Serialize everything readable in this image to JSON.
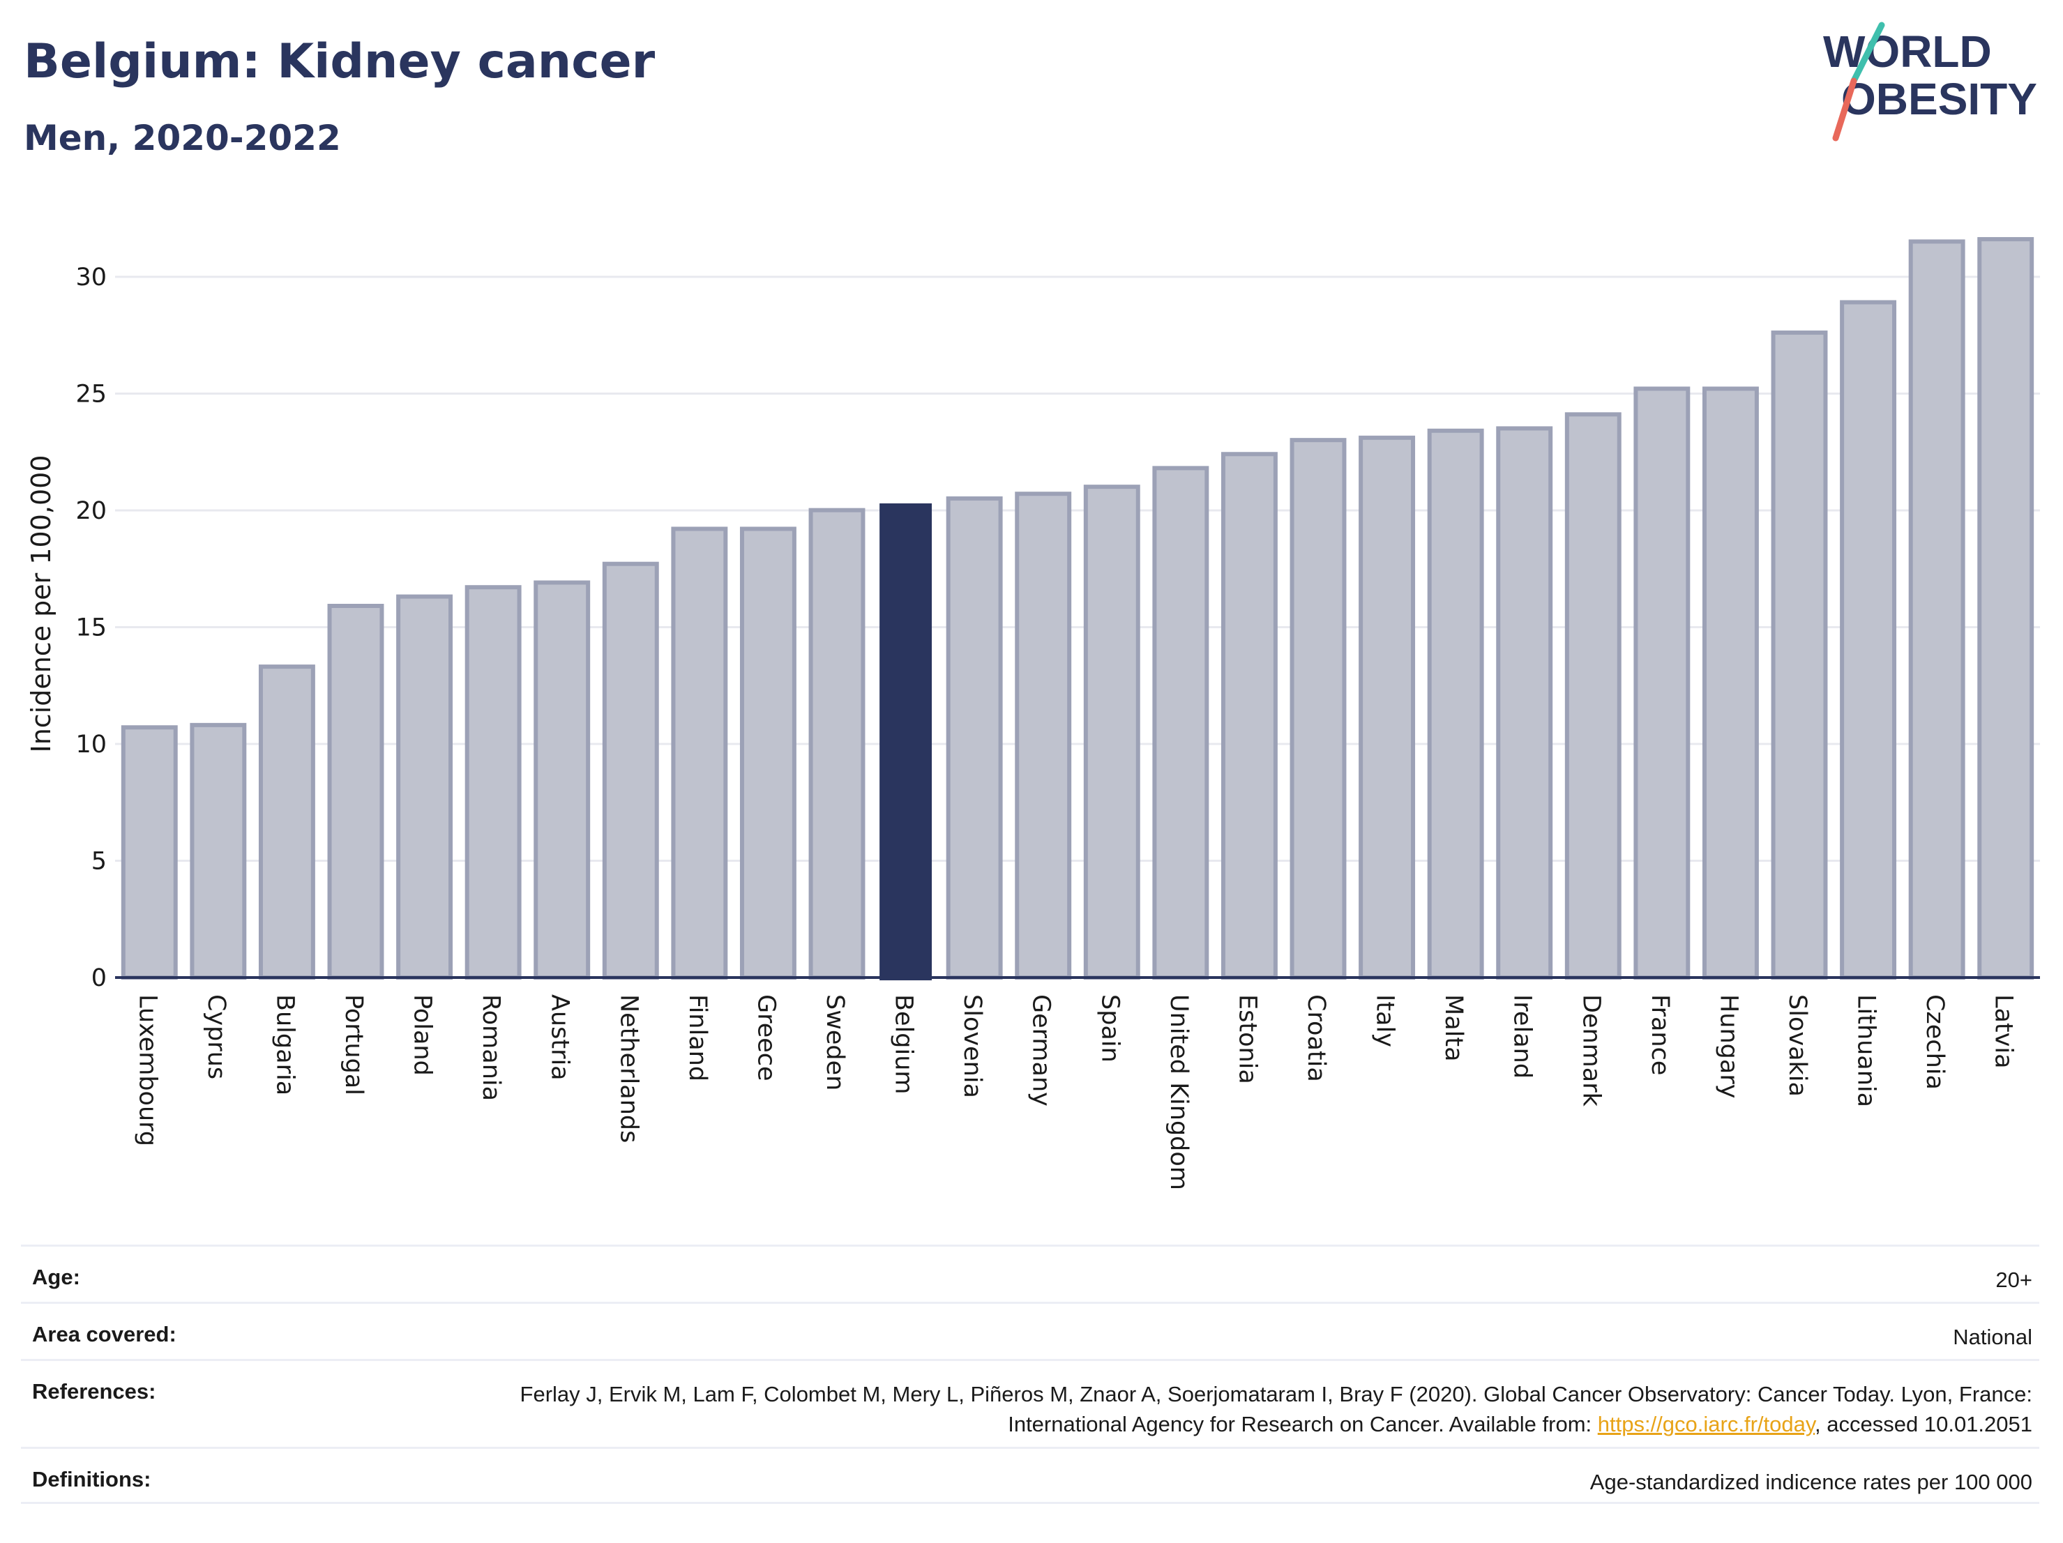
{
  "header": {
    "title": "Belgium: Kidney cancer",
    "subtitle": "Men, 2020-2022",
    "logo_line1": "WORLD",
    "logo_line2": "OBESITY"
  },
  "chart_data": {
    "type": "bar",
    "ylabel": "Incidence per 100,000",
    "xlabel": "",
    "ylim": [
      0,
      32
    ],
    "yticks": [
      0,
      5,
      10,
      15,
      20,
      25,
      30
    ],
    "grid": true,
    "highlight": "Belgium",
    "colors": {
      "bar": "#bfc2ce",
      "bar_border": "#9ca1b6",
      "highlight": "#2a355e",
      "grid": "#e8e9ef",
      "axis": "#2a355e"
    },
    "categories": [
      "Luxembourg",
      "Cyprus",
      "Bulgaria",
      "Portugal",
      "Poland",
      "Romania",
      "Austria",
      "Netherlands",
      "Finland",
      "Greece",
      "Sweden",
      "Belgium",
      "Slovenia",
      "Germany",
      "Spain",
      "United Kingdom",
      "Estonia",
      "Croatia",
      "Italy",
      "Malta",
      "Ireland",
      "Denmark",
      "France",
      "Hungary",
      "Slovakia",
      "Lithuania",
      "Czechia",
      "Latvia"
    ],
    "values": [
      10.8,
      10.9,
      13.4,
      16.0,
      16.4,
      16.8,
      17.0,
      17.8,
      19.3,
      19.3,
      20.1,
      20.3,
      20.6,
      20.8,
      21.1,
      21.9,
      22.5,
      23.1,
      23.2,
      23.5,
      23.6,
      24.2,
      25.3,
      25.3,
      27.7,
      29.0,
      31.6,
      31.7
    ]
  },
  "meta": {
    "age_label": "Age:",
    "age_value": "20+",
    "area_label": "Area covered:",
    "area_value": "National",
    "references_label": "References:",
    "references_text": "Ferlay J, Ervik M, Lam F, Colombet M, Mery L, Piñeros M, Znaor A, Soerjomataram I, Bray F (2020). Global Cancer Observatory: Cancer Today. Lyon, France: International Agency for Research on Cancer. Available from: ",
    "references_link": "https://gco.iarc.fr/today",
    "references_suffix": ", accessed 10.01.2051",
    "definitions_label": "Definitions:",
    "definitions_value": "Age-standardized indicence rates per 100 000"
  }
}
